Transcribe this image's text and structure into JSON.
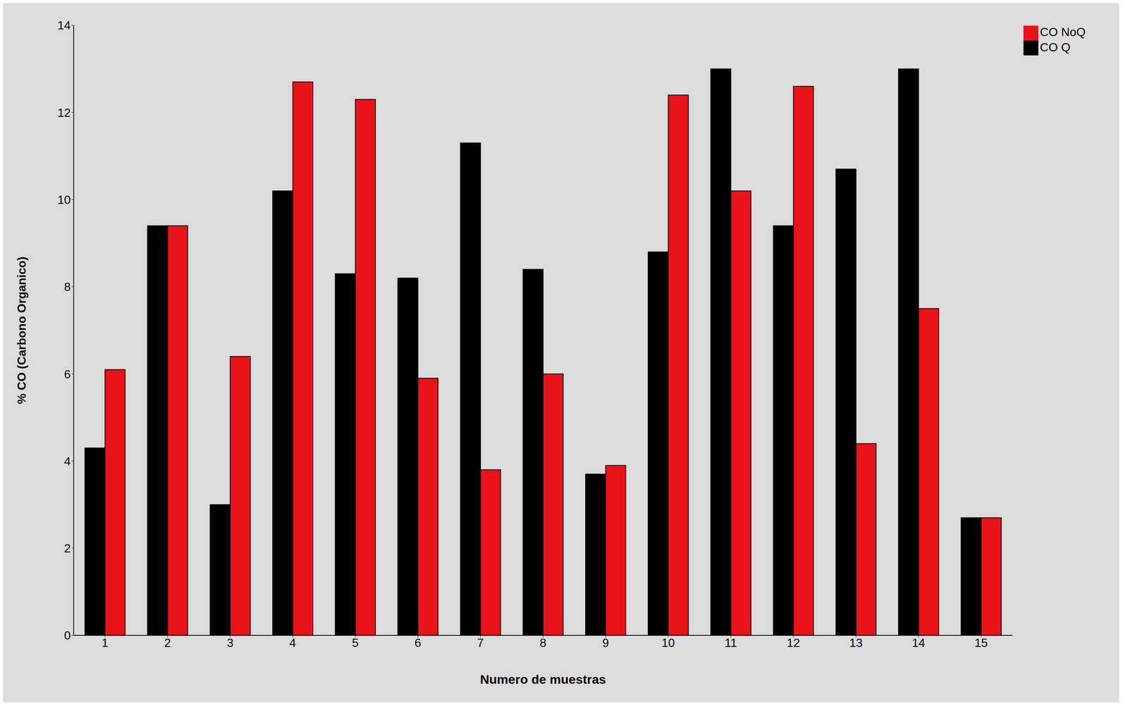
{
  "chart_data": {
    "type": "bar",
    "categories": [
      "1",
      "2",
      "3",
      "4",
      "5",
      "6",
      "7",
      "8",
      "9",
      "10",
      "11",
      "12",
      "13",
      "14",
      "15"
    ],
    "series": [
      {
        "name": "CO Q",
        "color": "#000000",
        "values": [
          4.3,
          9.4,
          3.0,
          10.2,
          8.3,
          8.2,
          11.3,
          8.4,
          3.7,
          8.8,
          13.0,
          9.4,
          10.7,
          13.0,
          2.7
        ]
      },
      {
        "name": "CO NoQ",
        "color": "#e8141a",
        "values": [
          6.1,
          9.4,
          6.4,
          12.7,
          12.3,
          5.9,
          3.8,
          6.0,
          3.9,
          12.4,
          10.2,
          12.6,
          4.4,
          7.5,
          2.7
        ]
      }
    ],
    "x_label": "Numero de muestras",
    "y_label": "% CO (Carbono Organico)",
    "ylim": [
      0,
      14
    ],
    "yticks": [
      0,
      2,
      4,
      6,
      8,
      10,
      12,
      14
    ],
    "grid": false,
    "legend": "top-right"
  }
}
